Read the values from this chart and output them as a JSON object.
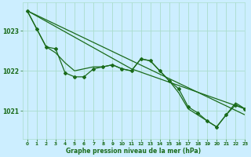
{
  "title": "Graphe pression niveau de la mer (hPa)",
  "bg_color": "#cceeff",
  "grid_color": "#aaddcc",
  "line_color": "#1a6b1a",
  "xlim": [
    -0.5,
    23
  ],
  "ylim": [
    1020.3,
    1023.7
  ],
  "yticks": [
    1021,
    1022,
    1023
  ],
  "xticks": [
    0,
    1,
    2,
    3,
    4,
    5,
    6,
    7,
    8,
    9,
    10,
    11,
    12,
    13,
    14,
    15,
    16,
    17,
    18,
    19,
    20,
    21,
    22,
    23
  ],
  "line1_x": [
    0,
    1,
    2,
    3,
    4,
    5,
    6,
    7,
    8,
    9,
    10,
    11,
    12,
    13,
    14,
    15,
    16,
    17,
    18,
    19,
    20,
    21,
    22,
    23
  ],
  "line1_y": [
    1023.5,
    1023.05,
    1022.6,
    1022.55,
    1021.95,
    1021.85,
    1021.85,
    1022.05,
    1022.1,
    1022.15,
    1022.05,
    1022.0,
    1022.3,
    1022.25,
    1022.0,
    1021.75,
    1021.55,
    1021.1,
    1020.95,
    1020.75,
    1020.6,
    1020.9,
    1021.15,
    1021.05
  ],
  "line2_x": [
    0,
    1,
    2,
    3,
    4,
    5,
    6,
    7,
    8,
    9,
    10,
    11,
    12,
    13,
    14,
    15,
    16,
    17,
    18,
    19,
    20,
    21,
    22,
    23
  ],
  "line2_y": [
    1023.5,
    1023.05,
    1022.6,
    1022.45,
    1022.2,
    1022.0,
    1022.05,
    1022.1,
    1022.1,
    1022.15,
    1022.05,
    1022.0,
    1022.3,
    1022.25,
    1022.0,
    1021.75,
    1021.45,
    1021.05,
    1020.9,
    1020.75,
    1020.6,
    1020.9,
    1021.2,
    1021.05
  ],
  "line3_x": [
    0,
    23
  ],
  "line3_y": [
    1023.5,
    1020.9
  ],
  "line4_x": [
    0,
    11,
    23
  ],
  "line4_y": [
    1023.5,
    1022.05,
    1021.05
  ]
}
